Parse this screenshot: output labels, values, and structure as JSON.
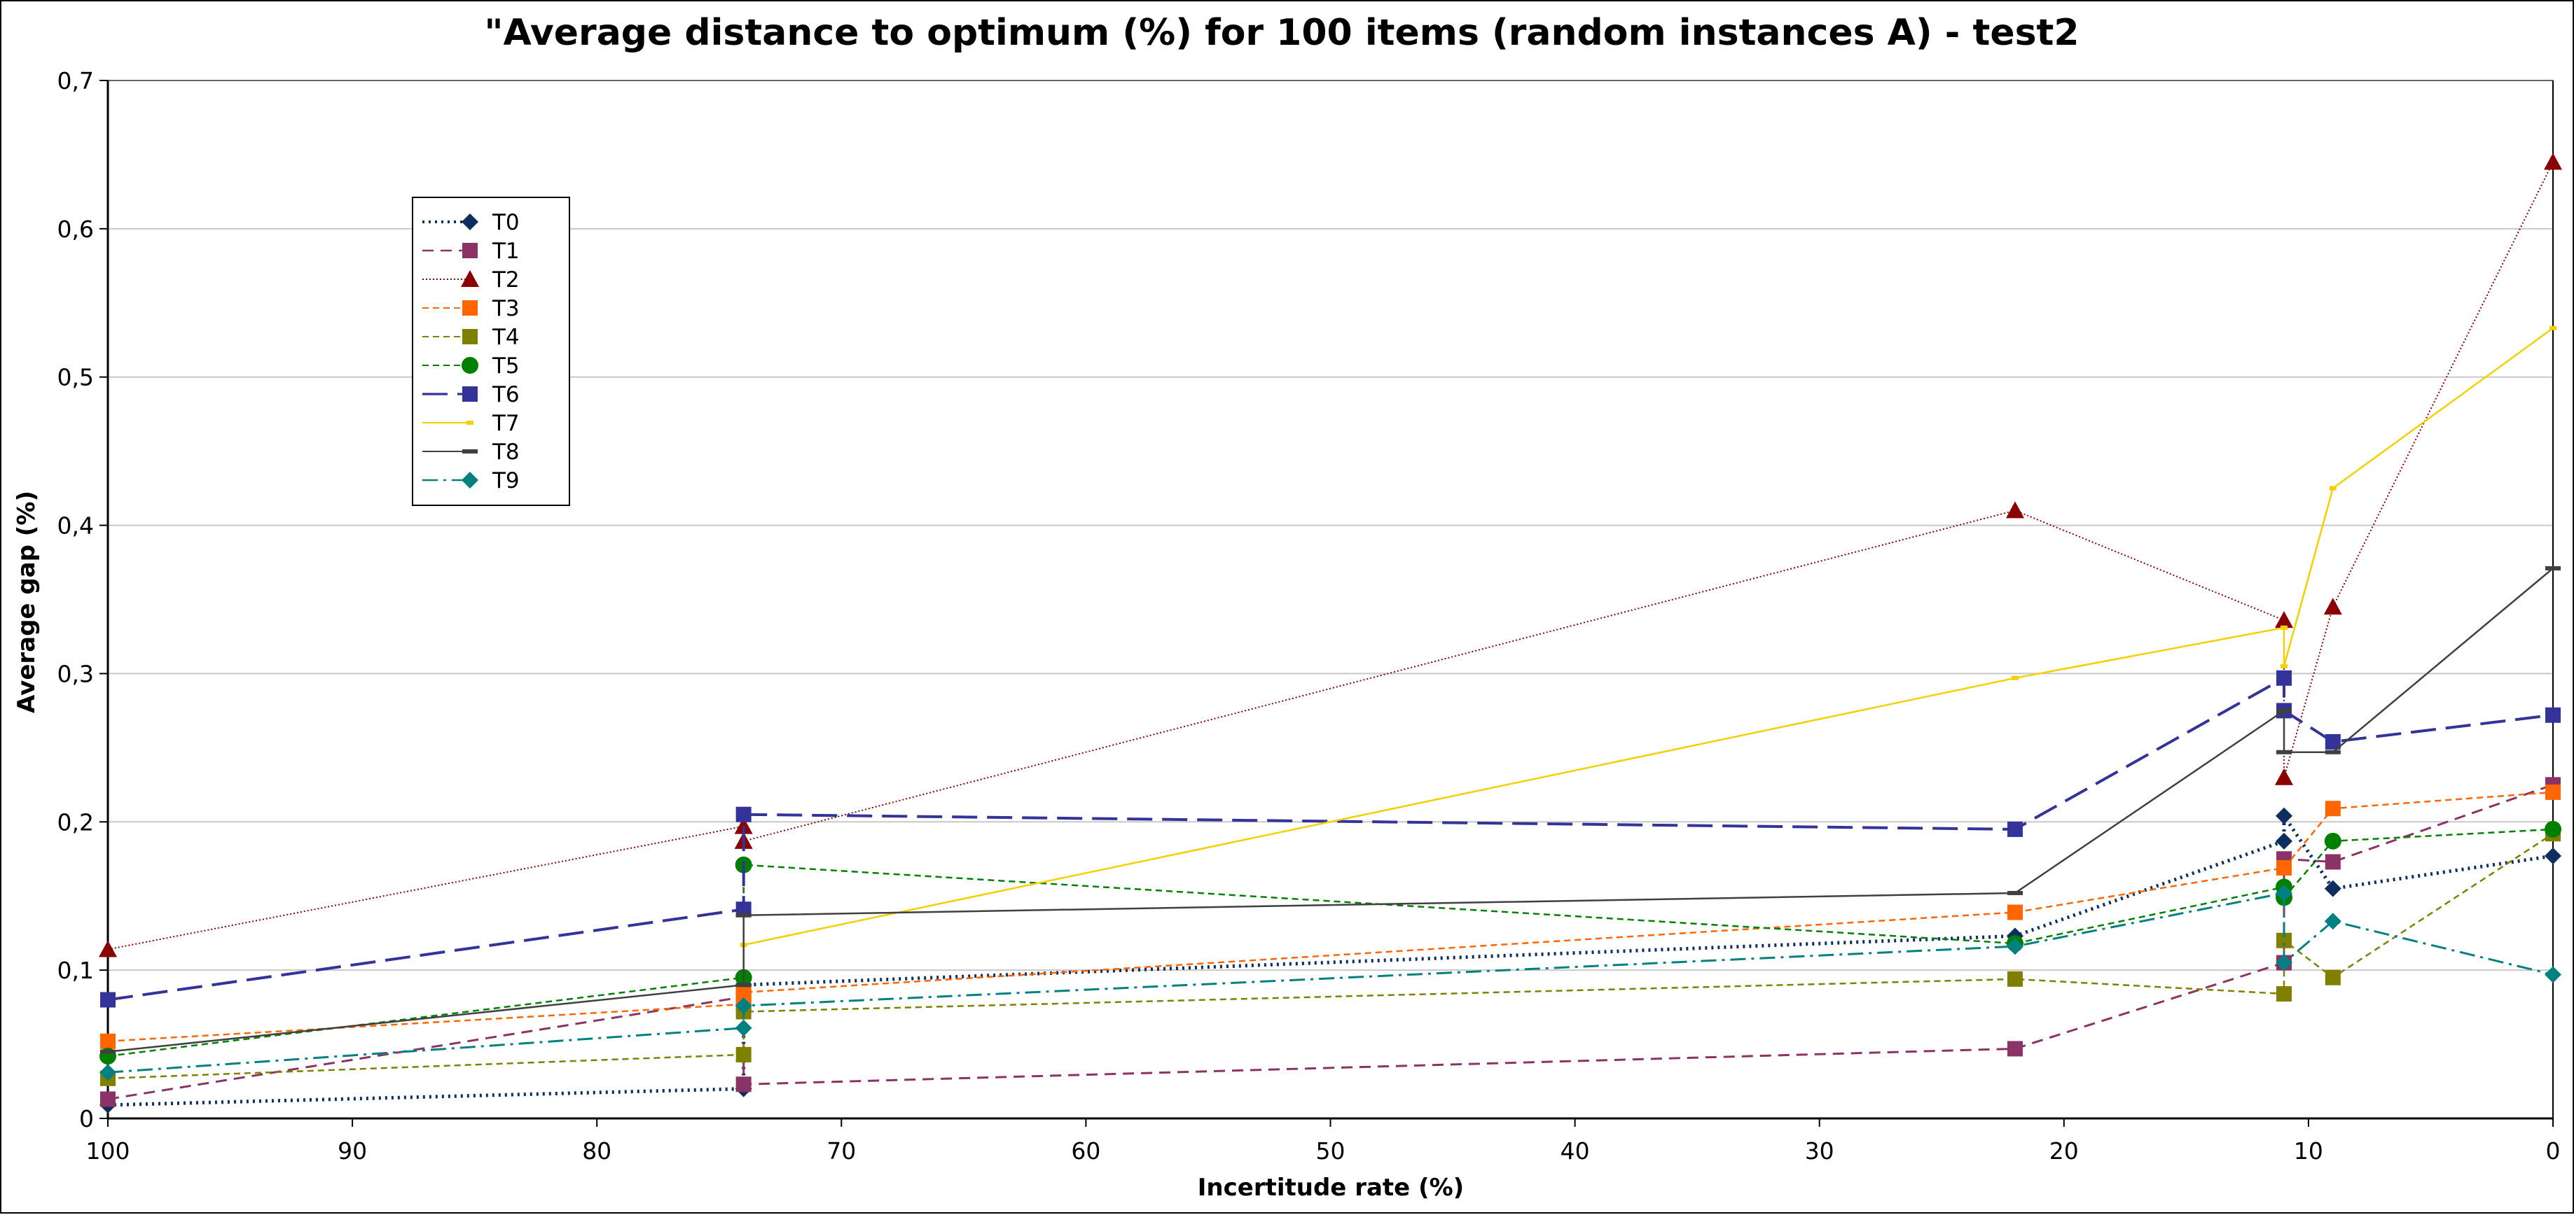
{
  "chart_data": {
    "type": "line",
    "title": "\"Average distance to optimum (%) for 100 items (random instances A) - test2",
    "xlabel": "Incertitude rate (%)",
    "ylabel": "Average gap (%)",
    "xlim": [
      100,
      0
    ],
    "ylim": [
      0,
      0.7
    ],
    "x_ticks": [
      "100",
      "90",
      "80",
      "70",
      "60",
      "50",
      "40",
      "30",
      "20",
      "10",
      "0"
    ],
    "y_ticks": [
      "0",
      "0,1",
      "0,2",
      "0,3",
      "0,4",
      "0,5",
      "0,6",
      "0,7"
    ],
    "grid": "horizontal",
    "legend_position": "top-left",
    "series": [
      {
        "name": "T0",
        "color": "#0d2e5e",
        "dash": "dotted",
        "marker": "diamond",
        "points": [
          [
            100,
            0.009
          ],
          [
            74,
            0.02
          ],
          [
            74,
            0.09
          ],
          [
            22,
            0.123
          ],
          [
            11,
            0.187
          ],
          [
            11,
            0.204
          ],
          [
            9,
            0.155
          ],
          [
            0,
            0.177
          ]
        ]
      },
      {
        "name": "T1",
        "color": "#8b3366",
        "dash": "dashed",
        "marker": "square",
        "points": [
          [
            100,
            0.013
          ],
          [
            74,
            0.082
          ],
          [
            74,
            0.023
          ],
          [
            22,
            0.047
          ],
          [
            11,
            0.105
          ],
          [
            11,
            0.175
          ],
          [
            9,
            0.173
          ],
          [
            0,
            0.225
          ]
        ]
      },
      {
        "name": "T2",
        "color": "#8b0000",
        "dash": "fine-dotted",
        "marker": "triangle",
        "points": [
          [
            100,
            0.114
          ],
          [
            74,
            0.197
          ],
          [
            74,
            0.187
          ],
          [
            22,
            0.41
          ],
          [
            11,
            0.336
          ],
          [
            11,
            0.23
          ],
          [
            9,
            0.345
          ],
          [
            0,
            0.645
          ]
        ]
      },
      {
        "name": "T3",
        "color": "#ff6600",
        "dash": "short-dashed",
        "marker": "square",
        "points": [
          [
            100,
            0.052
          ],
          [
            74,
            0.077
          ],
          [
            74,
            0.085
          ],
          [
            22,
            0.139
          ],
          [
            11,
            0.169
          ],
          [
            9,
            0.209
          ],
          [
            0,
            0.22
          ]
        ]
      },
      {
        "name": "T4",
        "color": "#808000",
        "dash": "short-dashed",
        "marker": "square",
        "points": [
          [
            100,
            0.027
          ],
          [
            74,
            0.043
          ],
          [
            74,
            0.072
          ],
          [
            22,
            0.094
          ],
          [
            11,
            0.084
          ],
          [
            11,
            0.12
          ],
          [
            9,
            0.095
          ],
          [
            0,
            0.192
          ]
        ]
      },
      {
        "name": "T5",
        "color": "#008000",
        "dash": "short-dashed",
        "marker": "circle",
        "points": [
          [
            100,
            0.042
          ],
          [
            74,
            0.095
          ],
          [
            74,
            0.171
          ],
          [
            22,
            0.118
          ],
          [
            11,
            0.156
          ],
          [
            11,
            0.149
          ],
          [
            9,
            0.187
          ],
          [
            0,
            0.195
          ]
        ]
      },
      {
        "name": "T6",
        "color": "#333399",
        "dash": "long-dashed",
        "marker": "square",
        "points": [
          [
            100,
            0.08
          ],
          [
            74,
            0.141
          ],
          [
            74,
            0.205
          ],
          [
            22,
            0.195
          ],
          [
            11,
            0.297
          ],
          [
            11,
            0.275
          ],
          [
            9,
            0.254
          ],
          [
            0,
            0.272
          ]
        ]
      },
      {
        "name": "T7",
        "color": "#f5d000",
        "dash": "solid",
        "marker": "small",
        "points": [
          [
            74,
            0.117
          ],
          [
            22,
            0.297
          ],
          [
            11,
            0.331
          ],
          [
            11,
            0.305
          ],
          [
            9,
            0.425
          ],
          [
            0,
            0.533
          ]
        ]
      },
      {
        "name": "T8",
        "color": "#404040",
        "dash": "solid",
        "marker": "dash",
        "points": [
          [
            100,
            0.045
          ],
          [
            74,
            0.09
          ],
          [
            74,
            0.137
          ],
          [
            22,
            0.152
          ],
          [
            11,
            0.275
          ],
          [
            11,
            0.247
          ],
          [
            9,
            0.247
          ],
          [
            0,
            0.371
          ]
        ]
      },
      {
        "name": "T9",
        "color": "#008080",
        "dash": "dash-dot",
        "marker": "diamond",
        "points": [
          [
            100,
            0.031
          ],
          [
            74,
            0.061
          ],
          [
            74,
            0.076
          ],
          [
            22,
            0.116
          ],
          [
            11,
            0.152
          ],
          [
            11,
            0.105
          ],
          [
            9,
            0.133
          ],
          [
            0,
            0.097
          ]
        ]
      }
    ]
  }
}
